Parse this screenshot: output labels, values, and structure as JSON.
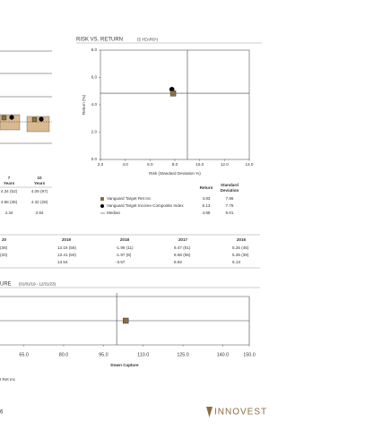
{
  "left_table": {
    "headers": [
      [
        "7",
        "Years"
      ],
      [
        "10",
        "Years"
      ]
    ],
    "rows": [
      [
        "4.34 (52)",
        "4.09 (97)"
      ],
      [
        "4.58 (36)",
        "4.32 (28)"
      ],
      [
        "4.34",
        "3.84"
      ]
    ]
  },
  "risk_return": {
    "type": "scatter",
    "title": "RISK VS. RETURN",
    "title_note": "(5 YEARS*)",
    "x_label": "Risk (Standard Deviation %)",
    "y_label": "Return (%)",
    "xlim": [
      2,
      14
    ],
    "xticks": [
      {
        "value": 2,
        "label": "2.0"
      },
      {
        "value": 4,
        "label": "4.0"
      },
      {
        "value": 6,
        "label": "6.0"
      },
      {
        "value": 8,
        "label": "8.0"
      },
      {
        "value": 10,
        "label": "10.0"
      },
      {
        "value": 12,
        "label": "12.0"
      },
      {
        "value": 14,
        "label": "14.0"
      }
    ],
    "ylim": [
      0,
      8
    ],
    "yticks": [
      {
        "value": 0,
        "label": "0.0"
      },
      {
        "value": 2,
        "label": "2.0"
      },
      {
        "value": 4,
        "label": "4.0"
      },
      {
        "value": 6,
        "label": "6.0"
      },
      {
        "value": 8,
        "label": "8.0"
      }
    ],
    "series": [
      {
        "name": "Vanguard Target Ret Inc",
        "marker": "square",
        "color": "#8c6d3f",
        "x": [
          7.86
        ],
        "values": [
          4.83
        ]
      },
      {
        "name": "Vanguard Target Income Composite Index",
        "marker": "circle",
        "color": "#000000",
        "x": [
          7.76
        ],
        "values": [
          5.13
        ]
      }
    ],
    "median": {
      "name": "Median",
      "x": 9.01,
      "y": 4.85
    },
    "table": {
      "headers": [
        "Return",
        [
          "Standard",
          "Deviation"
        ]
      ],
      "rows": [
        [
          "4.83",
          "7.86"
        ],
        [
          "5.13",
          "7.76"
        ],
        [
          "4.85",
          "9.01"
        ]
      ]
    }
  },
  "calendar_table": {
    "headers": [
      "20",
      "2019",
      "2018",
      "2017",
      "2016"
    ],
    "rows": [
      [
        "(38)",
        "13.16 (56)",
        "-1.99 (11)",
        "8.47 (61)",
        "5.25 (46)"
      ],
      [
        "(20)",
        "13.41 (50)",
        "-1.97 (8)",
        "8.68 (55)",
        "5.35 (39)"
      ],
      [
        "",
        "13.54",
        "-3.57",
        "8.92",
        "5.13"
      ]
    ]
  },
  "capture": {
    "type": "scatter",
    "title": "URE",
    "title_note": "(01/01/19 - 12/31/23)",
    "x_label": "Down Capture",
    "xlim": [
      56,
      150
    ],
    "xticks": [
      {
        "value": 65,
        "label": "65.0"
      },
      {
        "value": 80,
        "label": "80.0"
      },
      {
        "value": 95,
        "label": "95.0"
      },
      {
        "value": 110,
        "label": "110.0"
      },
      {
        "value": 125,
        "label": "125.0"
      },
      {
        "value": 140,
        "label": "140.0"
      },
      {
        "value": 150,
        "label": "150.0"
      }
    ],
    "ylim": [
      90,
      110
    ],
    "reference_x": 100,
    "reference_y": 100,
    "series": [
      {
        "color": "#8c6d3f",
        "x": [
          103.4
        ],
        "values": [
          100
        ]
      }
    ],
    "legend_fragment": "t Ret Inc"
  },
  "footer": {
    "page": "6",
    "brand": "INNOVEST"
  }
}
